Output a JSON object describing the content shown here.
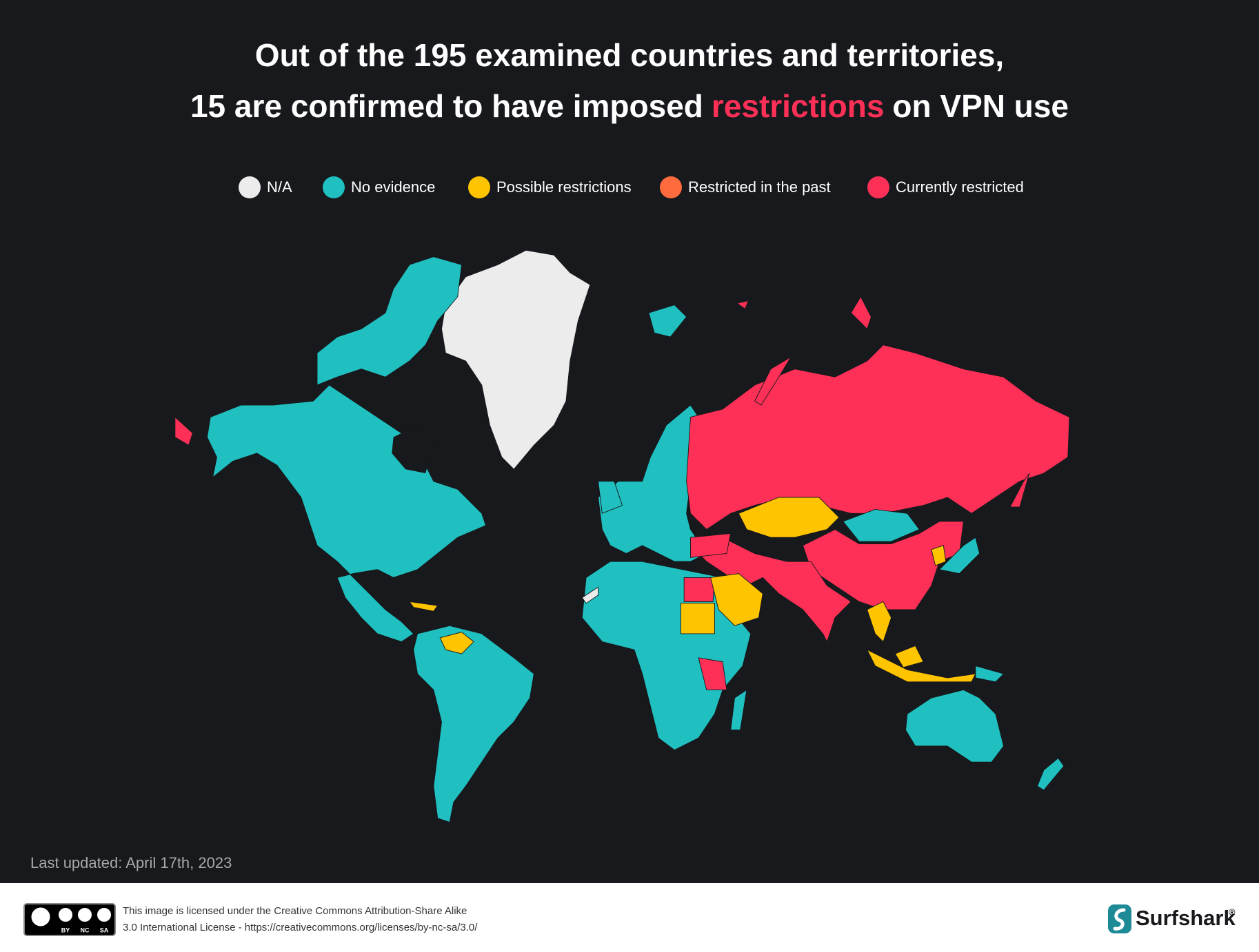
{
  "title": {
    "line1": "Out of the 195 examined countries and territories,",
    "line2_start": "15 are confirmed to have imposed",
    "line2_highlight": "restrictions",
    "line2_end": "on VPN use"
  },
  "legend": [
    {
      "label": "N/A",
      "color": "#ececec"
    },
    {
      "label": "No evidence",
      "color": "#20bfc0"
    },
    {
      "label": "Possible restrictions",
      "color": "#ffc400"
    },
    {
      "label": "Restricted in the past",
      "color": "#ff6b3d"
    },
    {
      "label": "Currently restricted",
      "color": "#ff3057"
    }
  ],
  "footer": {
    "last_updated": "Last updated: April 17th, 2023",
    "license_line1": "This image is licensed under the Creative Commons Attribution-Share Alike",
    "license_line2": "3.0 International License - https://creativecommons.org/licenses/by-nc-sa/3.0/",
    "cc_badges": [
      "BY",
      "NC",
      "SA"
    ],
    "brand": "Surfshark",
    "brand_mark": "®"
  }
}
